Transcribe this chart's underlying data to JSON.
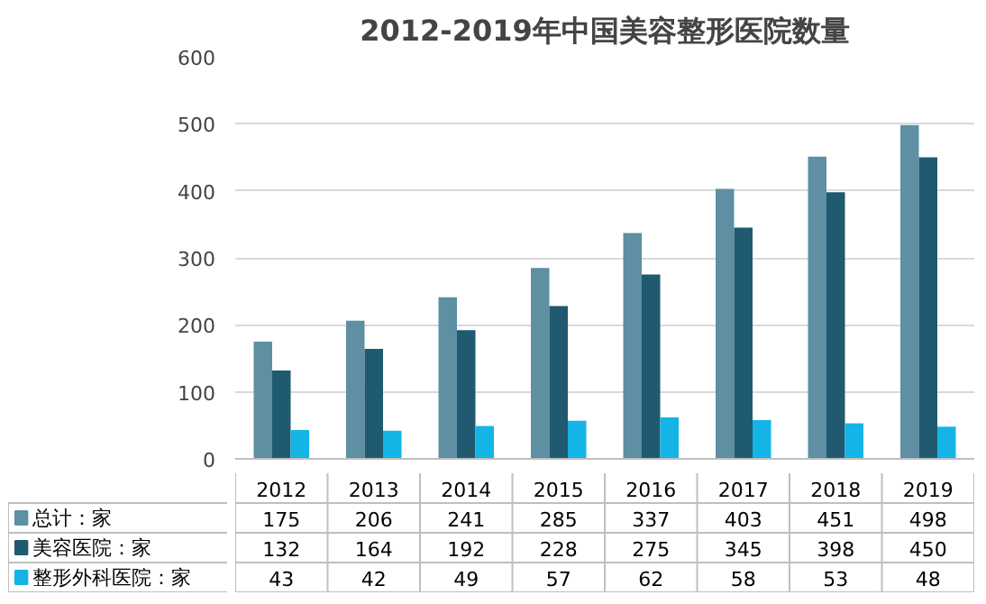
{
  "chart_data": {
    "type": "bar",
    "title": "2012-2019年中国美容整形医院数量",
    "categories": [
      "2012",
      "2013",
      "2014",
      "2015",
      "2016",
      "2017",
      "2018",
      "2019"
    ],
    "series": [
      {
        "name": "总计：家",
        "color": "#5e8fa3",
        "values": [
          175,
          206,
          241,
          285,
          337,
          403,
          451,
          498
        ]
      },
      {
        "name": "美容医院：家",
        "color": "#1f5a70",
        "values": [
          132,
          164,
          192,
          228,
          275,
          345,
          398,
          450
        ]
      },
      {
        "name": "整形外科医院：家",
        "color": "#14b4e6",
        "values": [
          43,
          42,
          49,
          57,
          62,
          58,
          53,
          48
        ]
      }
    ],
    "ylim": [
      0,
      600
    ],
    "yticks": [
      0,
      100,
      200,
      300,
      400,
      500,
      600
    ],
    "grid": "y",
    "legend": "bottom",
    "data_labels": true
  }
}
